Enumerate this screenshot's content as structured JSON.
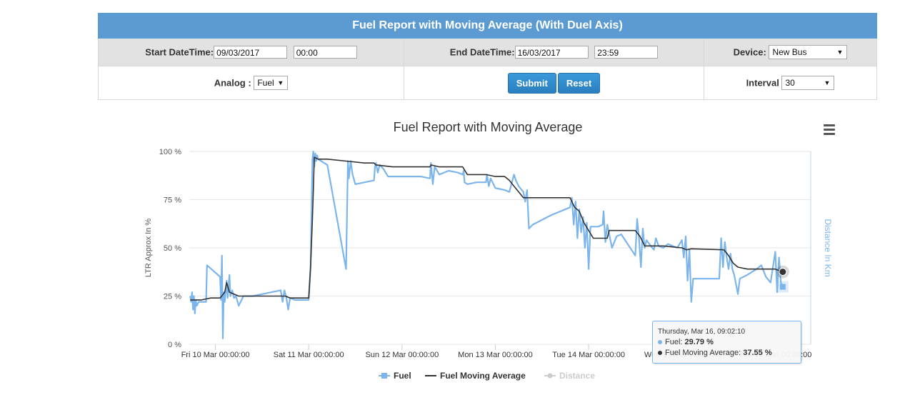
{
  "form": {
    "title": "Fuel Report with Moving Average (With Duel Axis)",
    "start_label": "Start DateTime:",
    "start_date": "09/03/2017",
    "start_time": "00:00",
    "end_label": "End DateTime:",
    "end_date": "16/03/2017",
    "end_time": "23:59",
    "device_label": "Device:",
    "device_value": "New Bus",
    "analog_label": "Analog :",
    "analog_value": "Fuel",
    "submit_label": "Submit",
    "reset_label": "Reset",
    "interval_label": "Interval",
    "interval_value": "30"
  },
  "colors": {
    "header": "#5b9bd1",
    "fuel": "#7cb5ec",
    "moving_avg": "#333333",
    "distance_muted": "#cccccc"
  },
  "tooltip": {
    "header": "Thursday, Mar 16, 09:02:10",
    "fuel_label": "Fuel: ",
    "fuel_value": "29.79 %",
    "avg_label": "Fuel Moving Average: ",
    "avg_value": "37.55 %"
  },
  "chart_data": {
    "type": "line",
    "title": "Fuel Report with Moving Average",
    "ylabel": "LTR Approx In %",
    "ylabel_right": "Distance In Km",
    "ylim": [
      0,
      100
    ],
    "yticks": [
      "0 %",
      "25 %",
      "50 %",
      "75 %",
      "100 %"
    ],
    "x_tick_labels": [
      "Fri 10 Mar 00:00:00",
      "Sat 11 Mar 00:00:00",
      "Sun 12 Mar 00:00:00",
      "Mon 13 Mar 00:00:00",
      "Tue 14 Mar 00:00:00",
      "Wed 15 Mar 00:00:00",
      "Thu 16 Mar 00:00:00"
    ],
    "x_unit": "days since Thu 09 Mar 00:00",
    "xlim": [
      0.72,
      7.38
    ],
    "legend": [
      "Fuel",
      "Fuel Moving Average",
      "Distance"
    ],
    "legend_position": "bottom-center",
    "series": [
      {
        "name": "Fuel",
        "color": "#7cb5ec",
        "points": [
          [
            0.73,
            25
          ],
          [
            0.74,
            22
          ],
          [
            0.75,
            27
          ],
          [
            0.76,
            18
          ],
          [
            0.77,
            25
          ],
          [
            0.78,
            16
          ],
          [
            0.79,
            23
          ],
          [
            0.8,
            20
          ],
          [
            0.82,
            22
          ],
          [
            0.9,
            22
          ],
          [
            0.91,
            41
          ],
          [
            0.98,
            38
          ],
          [
            1.05,
            35
          ],
          [
            1.06,
            23
          ],
          [
            1.07,
            46
          ],
          [
            1.08,
            3
          ],
          [
            1.09,
            27
          ],
          [
            1.1,
            22
          ],
          [
            1.12,
            33
          ],
          [
            1.13,
            24
          ],
          [
            1.15,
            36
          ],
          [
            1.16,
            25
          ],
          [
            1.18,
            28
          ],
          [
            1.2,
            24
          ],
          [
            1.22,
            25
          ],
          [
            1.25,
            20
          ],
          [
            1.3,
            25
          ],
          [
            1.4,
            25
          ],
          [
            1.5,
            26
          ],
          [
            1.6,
            27
          ],
          [
            1.7,
            28
          ],
          [
            1.72,
            22
          ],
          [
            1.74,
            28
          ],
          [
            1.76,
            24
          ],
          [
            1.78,
            18
          ],
          [
            1.8,
            24
          ],
          [
            1.85,
            23
          ],
          [
            1.9,
            23
          ],
          [
            1.95,
            23
          ],
          [
            2.0,
            23
          ],
          [
            2.02,
            40
          ],
          [
            2.04,
            96
          ],
          [
            2.05,
            100
          ],
          [
            2.06,
            92
          ],
          [
            2.07,
            99
          ],
          [
            2.08,
            95
          ],
          [
            2.09,
            98
          ],
          [
            2.1,
            96
          ],
          [
            2.2,
            93
          ],
          [
            2.4,
            39
          ],
          [
            2.42,
            95
          ],
          [
            2.43,
            86
          ],
          [
            2.45,
            95
          ],
          [
            2.47,
            88
          ],
          [
            2.5,
            83
          ],
          [
            2.6,
            84
          ],
          [
            2.7,
            85
          ],
          [
            2.71,
            92
          ],
          [
            2.72,
            94
          ],
          [
            2.74,
            89
          ],
          [
            2.76,
            93
          ],
          [
            2.8,
            91
          ],
          [
            2.85,
            87
          ],
          [
            3.0,
            87
          ],
          [
            3.2,
            87
          ],
          [
            3.3,
            86
          ],
          [
            3.31,
            94
          ],
          [
            3.33,
            83
          ],
          [
            3.35,
            92
          ],
          [
            3.4,
            88
          ],
          [
            3.5,
            90
          ],
          [
            3.6,
            89
          ],
          [
            3.65,
            88
          ],
          [
            3.66,
            90
          ],
          [
            3.67,
            84
          ],
          [
            3.7,
            83
          ],
          [
            3.8,
            84
          ],
          [
            3.9,
            84
          ],
          [
            3.91,
            88
          ],
          [
            3.93,
            82
          ],
          [
            3.95,
            86
          ],
          [
            4.0,
            81
          ],
          [
            4.1,
            80
          ],
          [
            4.15,
            79
          ],
          [
            4.2,
            88
          ],
          [
            4.22,
            85
          ],
          [
            4.25,
            82
          ],
          [
            4.3,
            79
          ],
          [
            4.32,
            74
          ],
          [
            4.34,
            80
          ],
          [
            4.36,
            60
          ],
          [
            4.4,
            62
          ],
          [
            4.6,
            67
          ],
          [
            4.8,
            71
          ],
          [
            4.82,
            76
          ],
          [
            4.84,
            62
          ],
          [
            4.86,
            74
          ],
          [
            4.88,
            55
          ],
          [
            4.9,
            70
          ],
          [
            4.92,
            58
          ],
          [
            4.94,
            66
          ],
          [
            4.96,
            50
          ],
          [
            4.98,
            63
          ],
          [
            5.0,
            39
          ],
          [
            5.02,
            61
          ],
          [
            5.1,
            61
          ],
          [
            5.15,
            62
          ],
          [
            5.16,
            69
          ],
          [
            5.18,
            53
          ],
          [
            5.2,
            62
          ],
          [
            5.25,
            50
          ],
          [
            5.3,
            56
          ],
          [
            5.35,
            57
          ],
          [
            5.5,
            46
          ],
          [
            5.52,
            65
          ],
          [
            5.54,
            55
          ],
          [
            5.56,
            40
          ],
          [
            5.58,
            60
          ],
          [
            5.6,
            50
          ],
          [
            5.62,
            54
          ],
          [
            5.65,
            52
          ],
          [
            5.7,
            49
          ],
          [
            5.72,
            55
          ],
          [
            5.75,
            51
          ],
          [
            5.8,
            50
          ],
          [
            5.85,
            52
          ],
          [
            5.9,
            51
          ],
          [
            5.95,
            50
          ],
          [
            6.0,
            54
          ],
          [
            6.02,
            45
          ],
          [
            6.04,
            56
          ],
          [
            6.06,
            33
          ],
          [
            6.08,
            49
          ],
          [
            6.1,
            22
          ],
          [
            6.12,
            34
          ],
          [
            6.3,
            34
          ],
          [
            6.4,
            34
          ],
          [
            6.42,
            55
          ],
          [
            6.44,
            40
          ],
          [
            6.46,
            53
          ],
          [
            6.48,
            45
          ],
          [
            6.5,
            39
          ],
          [
            6.52,
            47
          ],
          [
            6.54,
            39
          ],
          [
            6.56,
            36
          ],
          [
            6.6,
            26
          ],
          [
            6.62,
            34
          ],
          [
            6.7,
            36
          ],
          [
            6.8,
            39
          ],
          [
            6.85,
            41
          ],
          [
            6.9,
            35
          ],
          [
            6.95,
            32
          ],
          [
            7.0,
            48
          ],
          [
            7.02,
            27
          ],
          [
            7.04,
            45
          ],
          [
            7.06,
            32
          ],
          [
            7.08,
            29.79
          ]
        ]
      },
      {
        "name": "Fuel Moving Average",
        "color": "#333333",
        "points": [
          [
            0.73,
            23
          ],
          [
            0.85,
            23
          ],
          [
            0.95,
            24
          ],
          [
            1.05,
            24
          ],
          [
            1.1,
            27
          ],
          [
            1.12,
            32
          ],
          [
            1.15,
            27
          ],
          [
            1.25,
            25
          ],
          [
            1.6,
            25
          ],
          [
            1.75,
            25
          ],
          [
            1.8,
            24
          ],
          [
            2.0,
            24
          ],
          [
            2.02,
            40
          ],
          [
            2.04,
            65
          ],
          [
            2.05,
            80
          ],
          [
            2.06,
            97
          ],
          [
            2.1,
            96
          ],
          [
            2.2,
            96
          ],
          [
            2.4,
            95
          ],
          [
            2.6,
            94
          ],
          [
            2.7,
            94
          ],
          [
            2.72,
            93
          ],
          [
            2.9,
            92
          ],
          [
            3.3,
            92
          ],
          [
            3.31,
            93
          ],
          [
            3.4,
            92
          ],
          [
            3.65,
            92
          ],
          [
            3.7,
            88
          ],
          [
            3.9,
            88
          ],
          [
            4.0,
            87
          ],
          [
            4.1,
            87
          ],
          [
            4.15,
            85
          ],
          [
            4.2,
            82
          ],
          [
            4.3,
            76
          ],
          [
            4.8,
            76
          ],
          [
            4.85,
            71
          ],
          [
            4.9,
            69
          ],
          [
            4.95,
            63
          ],
          [
            5.0,
            59
          ],
          [
            5.05,
            55
          ],
          [
            5.2,
            55
          ],
          [
            5.22,
            59
          ],
          [
            5.5,
            59
          ],
          [
            5.55,
            56
          ],
          [
            5.58,
            53
          ],
          [
            5.6,
            51
          ],
          [
            5.8,
            51
          ],
          [
            6.0,
            50
          ],
          [
            6.05,
            49
          ],
          [
            6.1,
            49.5
          ],
          [
            6.45,
            49
          ],
          [
            6.5,
            46
          ],
          [
            6.55,
            42
          ],
          [
            6.6,
            40
          ],
          [
            6.7,
            39
          ],
          [
            7.0,
            39
          ],
          [
            7.05,
            38
          ],
          [
            7.08,
            37.55
          ]
        ]
      },
      {
        "name": "Distance",
        "color": "#cccccc",
        "points": []
      }
    ]
  }
}
